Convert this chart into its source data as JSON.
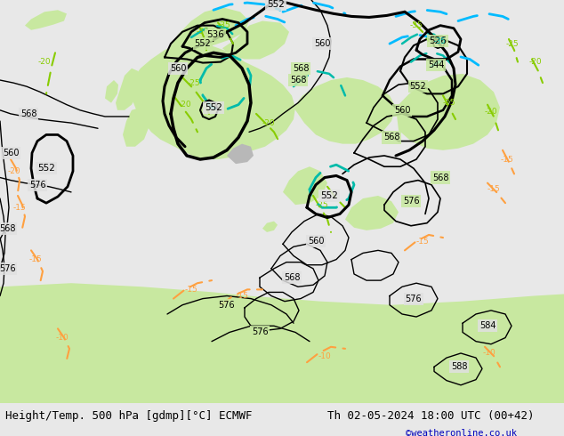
{
  "title_left": "Height/Temp. 500 hPa [gdmp][°C] ECMWF",
  "title_right": "Th 02-05-2024 18:00 UTC (00+42)",
  "credit": "©weatheronline.co.uk",
  "bg_light": "#e8e8e8",
  "bg_gray": "#c8c8c8",
  "land_green": "#c8e8a0",
  "land_gray": "#b8b8b8",
  "sea_color": "#e0e0e0",
  "contour_black": "#000000",
  "contour_thick": 2.2,
  "contour_thin": 1.0,
  "temp_orange": "#ffa040",
  "temp_lime": "#88cc00",
  "z850_cyan": "#00bbff",
  "trough_teal": "#00bbaa",
  "title_font_size": 9,
  "credit_color": "#0000bb",
  "figsize": [
    6.34,
    4.9
  ],
  "dpi": 100
}
